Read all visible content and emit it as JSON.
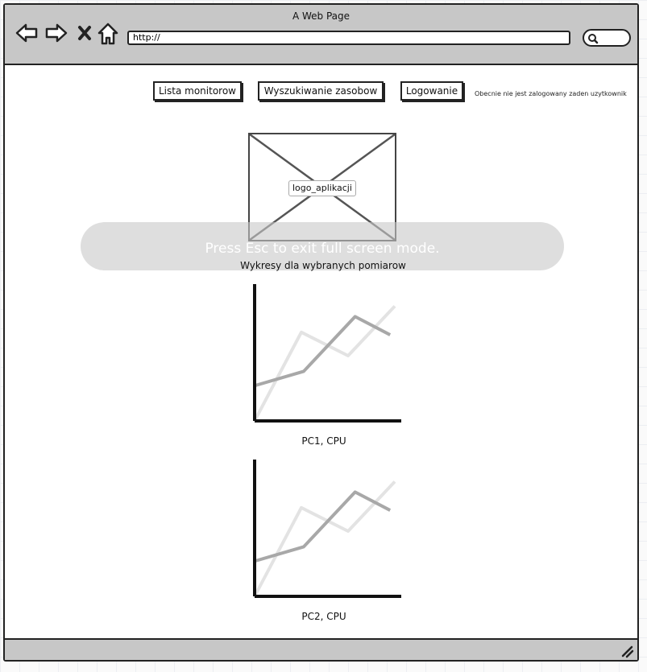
{
  "window": {
    "title": "A Web Page"
  },
  "address_bar": {
    "url": "http://"
  },
  "nav": {
    "buttons": [
      {
        "label": "Lista monitorow"
      },
      {
        "label": "Wyszukiwanie zasobow"
      },
      {
        "label": "Logowanie"
      }
    ],
    "login_status": "Obecnie nie jest zalogowany zaden uzytkownik"
  },
  "logo": {
    "label": "logo_aplikacji"
  },
  "fullscreen_toast": {
    "text": "Press Esc to exit full screen mode."
  },
  "section_title": "Wykresy dla wybranych pomiarow",
  "icons": [
    "back-arrow-icon",
    "forward-arrow-icon",
    "close-icon",
    "home-icon",
    "search-icon",
    "resize-grip-icon"
  ],
  "chart_data": [
    {
      "type": "line",
      "caption": "PC1, CPU",
      "xlim": [
        0,
        6
      ],
      "ylim": [
        0,
        10
      ],
      "series": [
        {
          "color": "#e3e3e3",
          "x": [
            0,
            2,
            4,
            6
          ],
          "y": [
            0,
            6.8,
            5.0,
            8.8
          ]
        },
        {
          "color": "#a8a8a8",
          "x": [
            0,
            2.1,
            4.3,
            5.8
          ],
          "y": [
            2.7,
            3.8,
            8.0,
            6.6
          ]
        }
      ]
    },
    {
      "type": "line",
      "caption": "PC2, CPU",
      "xlim": [
        0,
        6
      ],
      "ylim": [
        0,
        10
      ],
      "series": [
        {
          "color": "#e3e3e3",
          "x": [
            0,
            2,
            4,
            6
          ],
          "y": [
            0,
            6.8,
            5.0,
            8.8
          ]
        },
        {
          "color": "#a8a8a8",
          "x": [
            0,
            2.1,
            4.3,
            5.8
          ],
          "y": [
            2.7,
            3.8,
            8.0,
            6.6
          ]
        }
      ]
    }
  ]
}
